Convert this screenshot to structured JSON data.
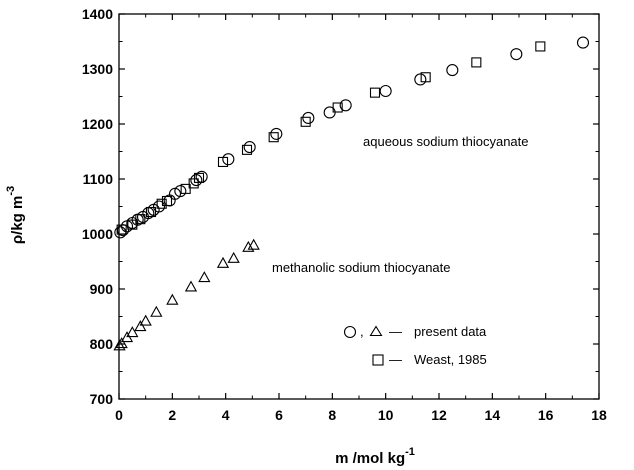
{
  "chart_data": {
    "type": "scatter",
    "xlabel": "m /mol kg",
    "xlabel_sup": "-1",
    "ylabel": "ρ/kg m",
    "ylabel_sup": "-3",
    "xlim": [
      0,
      18
    ],
    "ylim": [
      700,
      1400
    ],
    "xticks": [
      0,
      2,
      4,
      6,
      8,
      10,
      12,
      14,
      16,
      18
    ],
    "yticks": [
      700,
      800,
      900,
      1000,
      1100,
      1200,
      1300,
      1400
    ],
    "annotations": [
      {
        "text": "aqueous sodium thiocyanate",
        "x": 8.9,
        "y": 1165
      },
      {
        "text": "methanolic sodium thiocyanate",
        "x": 5.6,
        "y": 935
      }
    ],
    "legend": {
      "position": "bottom-right",
      "entries": [
        {
          "symbols": [
            "circle",
            "triangle"
          ],
          "separator": ",",
          "dash": "—",
          "label": "present data"
        },
        {
          "symbols": [
            "square"
          ],
          "dash": "—",
          "label": "Weast, 1985"
        }
      ]
    },
    "series": [
      {
        "marker": "circle",
        "points": [
          [
            0.05,
            1003
          ],
          [
            0.15,
            1007
          ],
          [
            0.3,
            1014
          ],
          [
            0.5,
            1020
          ],
          [
            0.7,
            1026
          ],
          [
            0.9,
            1031
          ],
          [
            1.1,
            1038
          ],
          [
            1.3,
            1044
          ],
          [
            1.5,
            1050
          ],
          [
            1.9,
            1061
          ],
          [
            2.1,
            1073
          ],
          [
            2.3,
            1078
          ],
          [
            2.9,
            1098
          ],
          [
            3.1,
            1104
          ],
          [
            4.1,
            1136
          ],
          [
            4.9,
            1158
          ],
          [
            5.9,
            1182
          ],
          [
            7.1,
            1211
          ],
          [
            7.9,
            1221
          ],
          [
            8.5,
            1234
          ],
          [
            10.0,
            1260
          ],
          [
            11.3,
            1281
          ],
          [
            12.5,
            1298
          ],
          [
            14.9,
            1327
          ],
          [
            17.4,
            1348
          ]
        ]
      },
      {
        "marker": "triangle",
        "points": [
          [
            0.02,
            797
          ],
          [
            0.1,
            801
          ],
          [
            0.3,
            812
          ],
          [
            0.5,
            821
          ],
          [
            0.8,
            832
          ],
          [
            1.0,
            842
          ],
          [
            1.4,
            858
          ],
          [
            2.0,
            880
          ],
          [
            2.7,
            904
          ],
          [
            3.2,
            921
          ],
          [
            3.9,
            947
          ],
          [
            4.3,
            956
          ],
          [
            4.85,
            976
          ],
          [
            5.05,
            980
          ]
        ]
      },
      {
        "marker": "square",
        "points": [
          [
            0.1,
            1008
          ],
          [
            0.5,
            1017
          ],
          [
            0.8,
            1027
          ],
          [
            1.2,
            1040
          ],
          [
            1.6,
            1055
          ],
          [
            1.8,
            1060
          ],
          [
            2.5,
            1082
          ],
          [
            2.8,
            1092
          ],
          [
            3.0,
            1102
          ],
          [
            3.9,
            1131
          ],
          [
            4.8,
            1153
          ],
          [
            5.8,
            1176
          ],
          [
            7.0,
            1204
          ],
          [
            8.2,
            1230
          ],
          [
            9.6,
            1257
          ],
          [
            11.5,
            1285
          ],
          [
            13.4,
            1312
          ],
          [
            15.8,
            1341
          ]
        ]
      }
    ]
  }
}
